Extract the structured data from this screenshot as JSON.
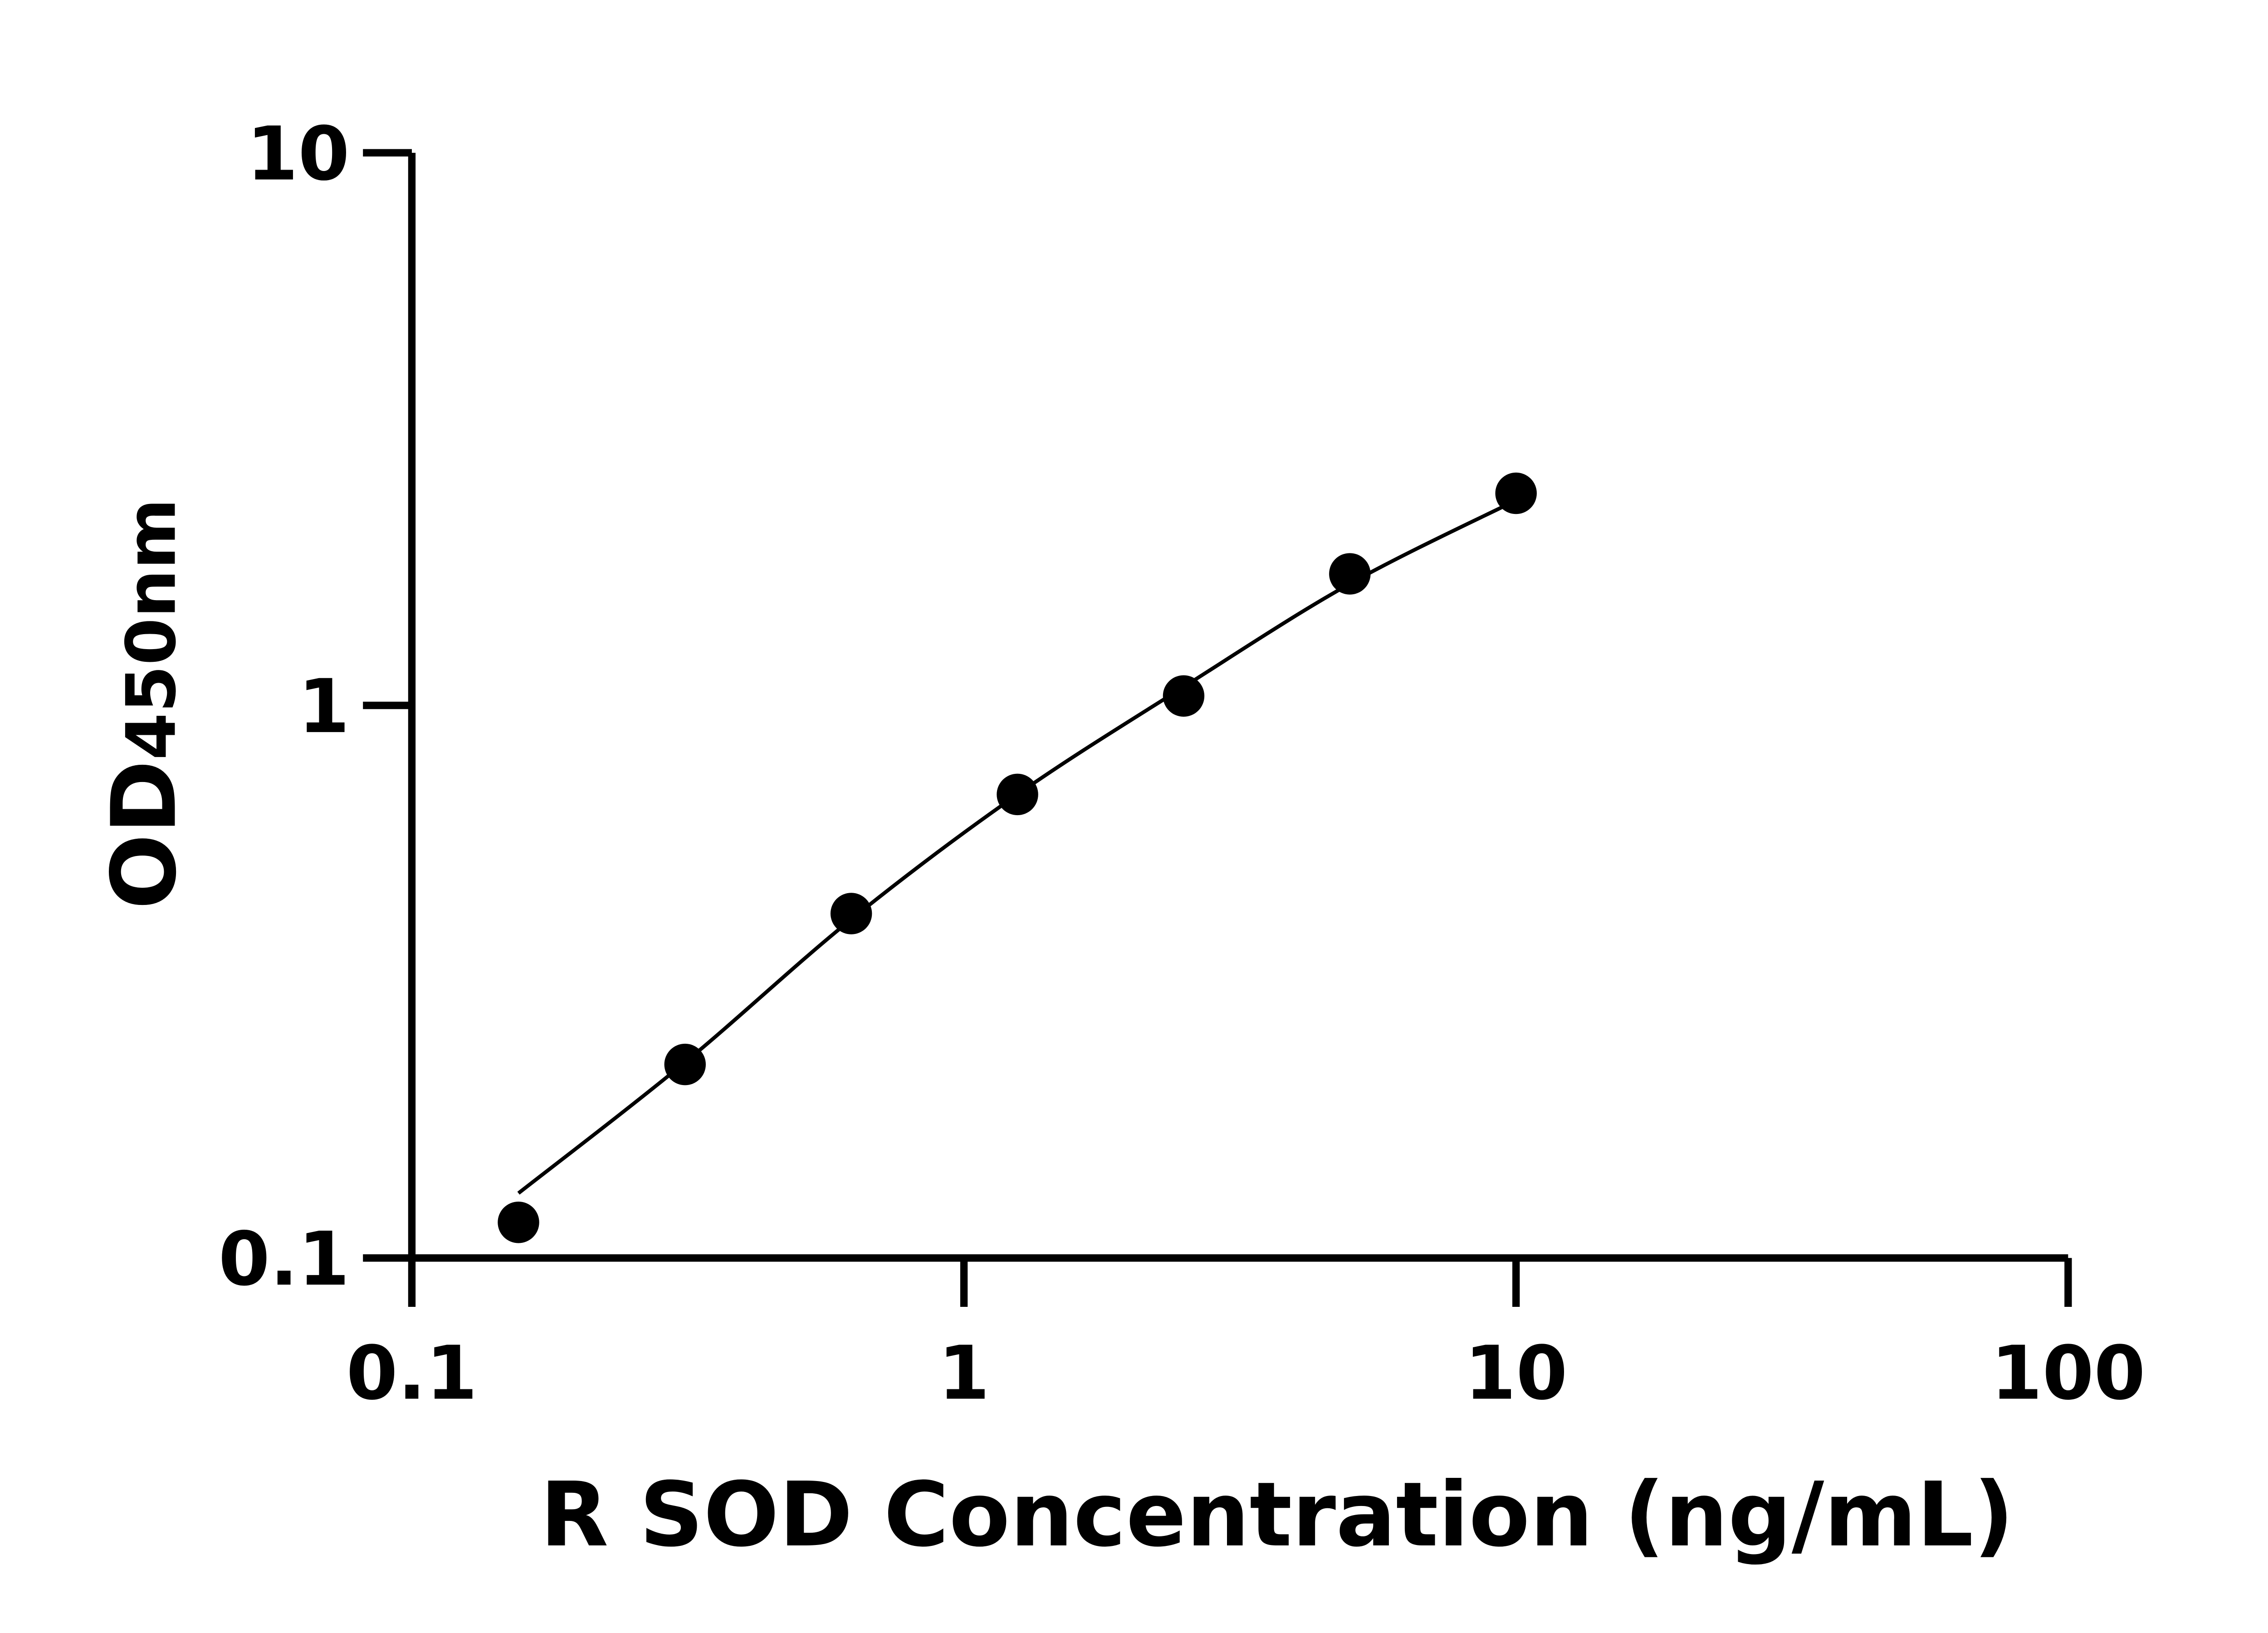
{
  "chart_data": {
    "type": "scatter",
    "title": "",
    "xlabel": "R SOD Concentration (ng/mL)",
    "ylabel_main": "OD",
    "ylabel_sub": "450nm",
    "x_scale": "log",
    "y_scale": "log",
    "xlim": [
      0.1,
      100
    ],
    "ylim": [
      0.1,
      10
    ],
    "x_ticks": [
      "0.1",
      "1",
      "10",
      "100"
    ],
    "y_ticks": [
      "0.1",
      "1",
      "10"
    ],
    "grid": false,
    "series": [
      {
        "x": [
          0.156,
          0.3125,
          0.625,
          1.25,
          2.5,
          5,
          10
        ],
        "y": [
          0.116,
          0.224,
          0.42,
          0.69,
          1.04,
          1.73,
          2.42
        ],
        "marker_color": "#000000"
      }
    ],
    "fit_curve": {
      "x": [
        0.156,
        0.3125,
        0.625,
        1.25,
        2.5,
        5,
        10
      ],
      "y": [
        0.131,
        0.226,
        0.41,
        0.69,
        1.08,
        1.66,
        2.35
      ],
      "color": "#000000"
    }
  }
}
